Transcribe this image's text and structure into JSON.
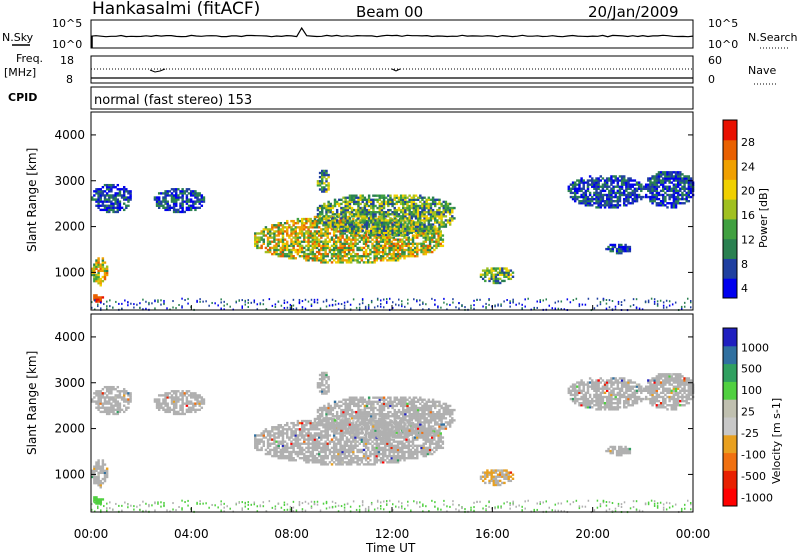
{
  "header": {
    "station": "Hankasalmi (fitACF)",
    "beam": "Beam 00",
    "date": "20/Jan/2009"
  },
  "top_panel": {
    "left_label": "N.Sky",
    "right_label": "N.Search",
    "left_ticks": [
      "10^5",
      "10^0"
    ],
    "right_ticks": [
      "10^5",
      "10^0"
    ]
  },
  "freq_panel": {
    "left_label_1": "Freq.",
    "left_label_2": "[MHz]",
    "right_label": "Nave",
    "left_ticks": [
      "18",
      "8"
    ],
    "right_ticks": [
      "60",
      "0"
    ]
  },
  "cpid": {
    "label": "CPID",
    "text": "normal (fast stereo) 153"
  },
  "colors": {
    "power_scale": [
      "#0000ee",
      "#2040a0",
      "#2a8050",
      "#40a040",
      "#a0c020",
      "#f0d000",
      "#f0a000",
      "#e86000",
      "#e81000"
    ],
    "velocity_scale": [
      "#2020c0",
      "#3070a0",
      "#30a060",
      "#50d040",
      "#c0c0b0",
      "#c8c8c8",
      "#e8a020",
      "#f07010",
      "#e82000",
      "#ff0000"
    ],
    "ground_scatter": "#b0b0b0"
  },
  "chart_data": [
    {
      "type": "heatmap",
      "name": "power",
      "ylabel": "Slant Range [km]",
      "ylim": [
        180,
        4500
      ],
      "yticks": [
        "4000",
        "3000",
        "2000",
        "1000"
      ],
      "xlim": [
        0,
        24
      ],
      "xticks": [
        "00:00",
        "04:00",
        "08:00",
        "12:00",
        "16:00",
        "20:00",
        "00:00"
      ],
      "colorbar": {
        "label": "Power [dB]",
        "ticks": [
          "28",
          "24",
          "20",
          "16",
          "12",
          "8",
          "4"
        ],
        "range": [
          0,
          30
        ]
      },
      "regions": [
        {
          "t": [
            0.0,
            0.6
          ],
          "r": [
            700,
            1300
          ],
          "level": "high"
        },
        {
          "t": [
            0.0,
            0.5
          ],
          "r": [
            300,
            500
          ],
          "level": "very-high"
        },
        {
          "t": [
            0.0,
            1.6
          ],
          "r": [
            2300,
            2900
          ],
          "level": "low"
        },
        {
          "t": [
            2.5,
            4.5
          ],
          "r": [
            2300,
            2800
          ],
          "level": "low"
        },
        {
          "t": [
            6.5,
            14.0
          ],
          "r": [
            1200,
            2200
          ],
          "level": "high"
        },
        {
          "t": [
            9.0,
            14.5
          ],
          "r": [
            1800,
            2700
          ],
          "level": "medium"
        },
        {
          "t": [
            9.0,
            9.5
          ],
          "r": [
            2700,
            3200
          ],
          "level": "medium"
        },
        {
          "t": [
            15.5,
            16.8
          ],
          "r": [
            750,
            1100
          ],
          "level": "medium"
        },
        {
          "t": [
            19.0,
            22.0
          ],
          "r": [
            2400,
            3100
          ],
          "level": "low"
        },
        {
          "t": [
            20.5,
            21.5
          ],
          "r": [
            1400,
            1600
          ],
          "level": "low"
        },
        {
          "t": [
            22.0,
            24.0
          ],
          "r": [
            2400,
            3200
          ],
          "level": "low"
        }
      ]
    },
    {
      "type": "heatmap",
      "name": "velocity",
      "ylabel": "Slant Range [km]",
      "ylim": [
        180,
        4500
      ],
      "yticks": [
        "4000",
        "3000",
        "2000",
        "1000"
      ],
      "xlim": [
        0,
        24
      ],
      "xticks": [
        "00:00",
        "04:00",
        "08:00",
        "12:00",
        "16:00",
        "20:00",
        "00:00"
      ],
      "xlabel": "Time UT",
      "colorbar": {
        "label": "Velocity [m s-1]",
        "ticks": [
          "1000",
          "500",
          "100",
          "25",
          "-25",
          "-100",
          "-500",
          "-1000"
        ],
        "range": [
          -1200,
          1200
        ]
      }
    }
  ]
}
